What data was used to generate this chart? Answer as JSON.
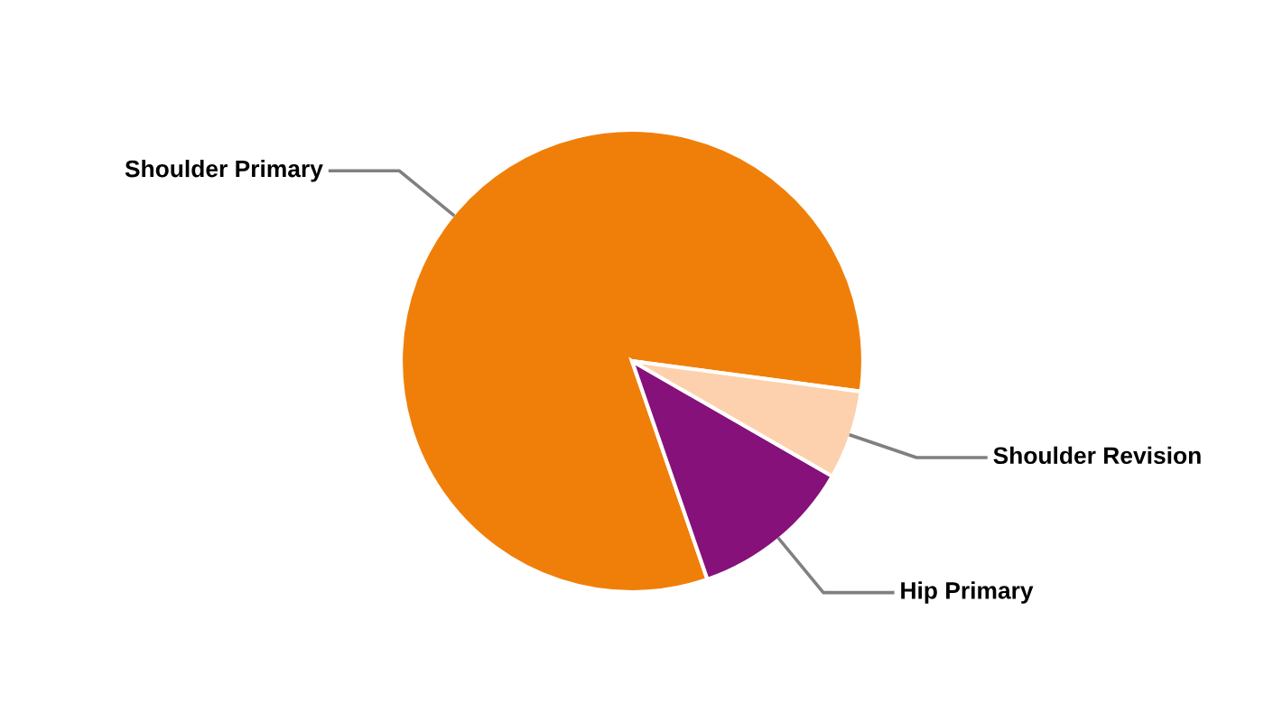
{
  "chart_data": {
    "type": "pie",
    "categories": [
      "Shoulder Primary",
      "Hip Primary",
      "Shoulder Revision"
    ],
    "values": [
      82.4,
      11.4,
      6.2
    ],
    "colors": [
      "#f07f09",
      "#86117a",
      "#fdd1ad"
    ]
  }
}
